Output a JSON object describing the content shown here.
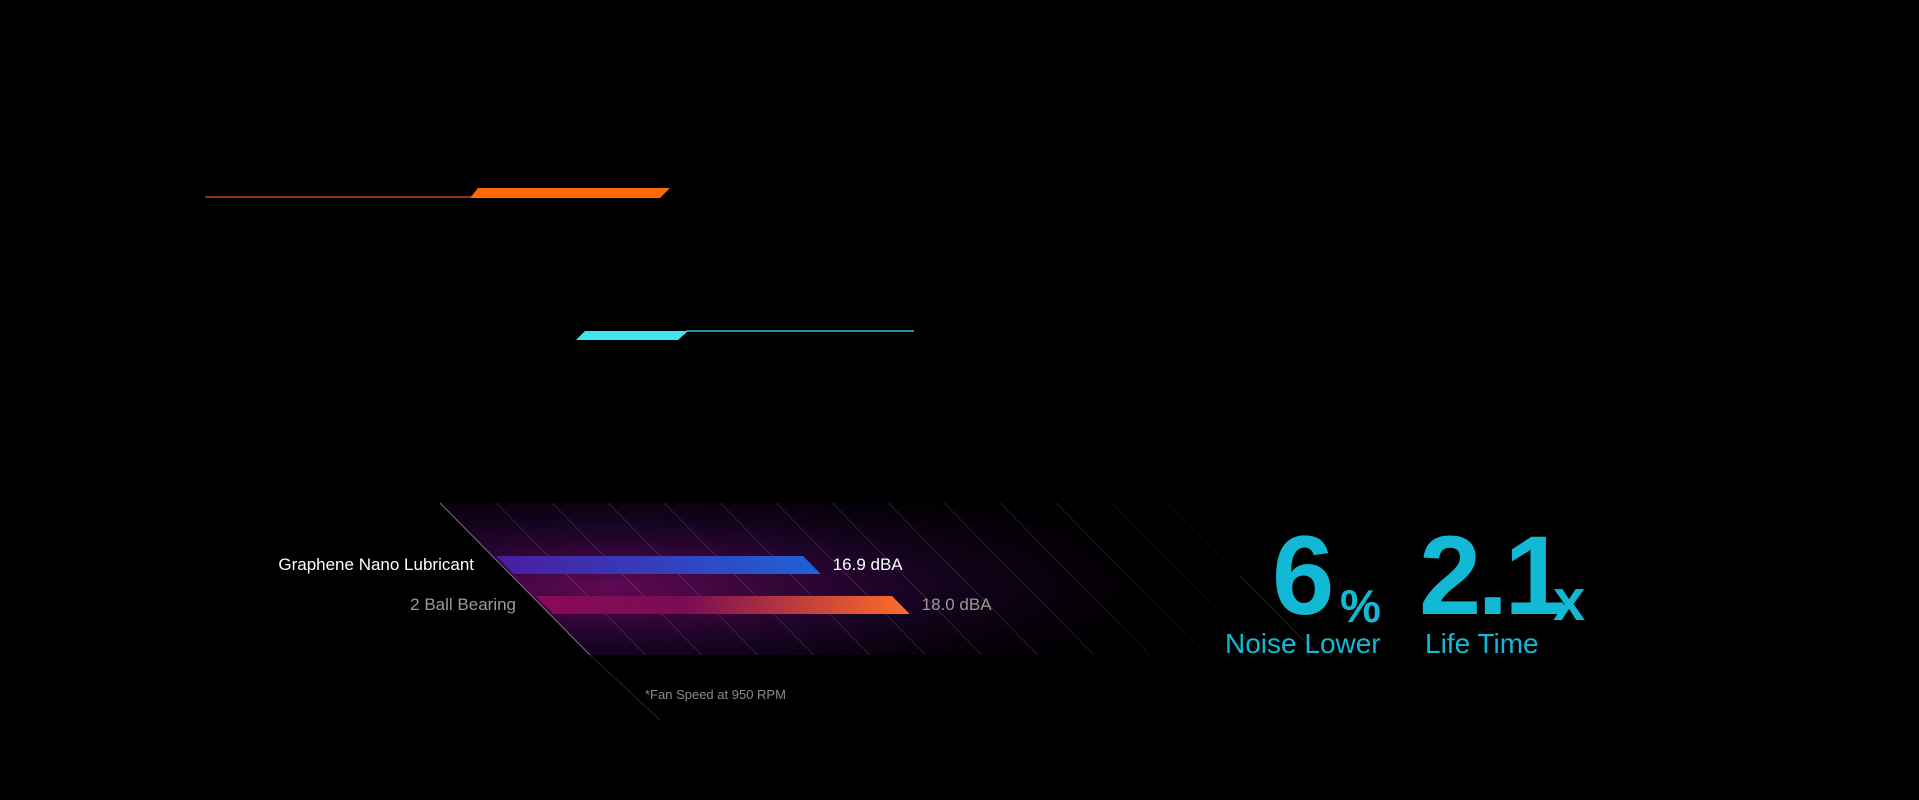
{
  "chart_data": {
    "type": "bar",
    "orientation": "horizontal",
    "categories": [
      "Graphene Nano Lubricant",
      "2 Ball Bearing"
    ],
    "values": [
      16.9,
      18.0
    ],
    "value_labels": [
      "16.9 dBA",
      "18.0 dBA"
    ],
    "unit": "dBA",
    "footnote": "*Fan Speed at 950 RPM",
    "colors": {
      "graphene_bar": [
        "#4a1ca0",
        "#1c63d6"
      ],
      "ball_bar": [
        "#8a0a5a",
        "#ff6e28"
      ],
      "grid_glow": "#b0109a"
    }
  },
  "stats": [
    {
      "value": "6",
      "unit": "%",
      "label": "Noise Lower"
    },
    {
      "value": "2.1",
      "unit": "x",
      "label": "Life Time"
    }
  ],
  "colors": {
    "accent_cyan": "#12b9d4",
    "orange_line": "#ff6a00",
    "cyan_line": "#3fe6ee"
  }
}
